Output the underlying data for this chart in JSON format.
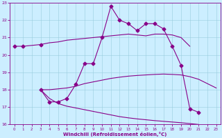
{
  "xlabel": "Windchill (Refroidissement éolien,°C)",
  "bg_color": "#cceeff",
  "line_color": "#880088",
  "grid_color": "#99ccdd",
  "xlim": [
    -0.5,
    23.5
  ],
  "ylim": [
    16,
    23
  ],
  "yticks": [
    16,
    17,
    18,
    19,
    20,
    21,
    22,
    23
  ],
  "xticks": [
    0,
    1,
    2,
    3,
    4,
    5,
    6,
    7,
    8,
    9,
    10,
    11,
    12,
    13,
    14,
    15,
    16,
    17,
    18,
    19,
    20,
    21,
    22,
    23
  ],
  "s0_x": [
    0,
    1,
    2,
    3,
    4,
    5,
    6,
    7,
    8,
    9,
    10,
    11,
    12,
    13,
    14,
    15,
    16,
    17,
    18,
    19,
    20
  ],
  "s0_y": [
    20.5,
    20.5,
    20.55,
    20.6,
    20.7,
    20.75,
    20.85,
    20.9,
    20.95,
    21.0,
    21.05,
    21.1,
    21.15,
    21.2,
    21.15,
    21.1,
    21.2,
    21.2,
    21.15,
    21.0,
    20.5
  ],
  "s0_mx": [
    0,
    1,
    3
  ],
  "s0_my": [
    20.5,
    20.5,
    20.6
  ],
  "s1_x": [
    3,
    4,
    5,
    6,
    7,
    8,
    9,
    10,
    11,
    12,
    13,
    14,
    15,
    16,
    17,
    18,
    19,
    20,
    21
  ],
  "s1_y": [
    18.0,
    17.3,
    17.3,
    17.5,
    18.3,
    19.5,
    19.5,
    21.0,
    22.8,
    22.0,
    21.8,
    21.4,
    21.8,
    21.8,
    21.5,
    20.5,
    19.4,
    16.9,
    16.7
  ],
  "s2_x": [
    3,
    4,
    5,
    6,
    7,
    8,
    9,
    10,
    11,
    12,
    13,
    14,
    15,
    16,
    17,
    18,
    19,
    20,
    21,
    22,
    23
  ],
  "s2_y": [
    18.0,
    18.0,
    18.05,
    18.1,
    18.2,
    18.35,
    18.45,
    18.55,
    18.65,
    18.72,
    18.78,
    18.82,
    18.85,
    18.88,
    18.9,
    18.88,
    18.85,
    18.75,
    18.6,
    18.35,
    18.1
  ],
  "s3_x": [
    3,
    4,
    5,
    6,
    7,
    8,
    9,
    10,
    11,
    12,
    13,
    14,
    15,
    16,
    17,
    18,
    19,
    20,
    21,
    22,
    23
  ],
  "s3_y": [
    18.0,
    17.5,
    17.2,
    17.05,
    16.95,
    16.85,
    16.75,
    16.65,
    16.55,
    16.45,
    16.38,
    16.32,
    16.27,
    16.22,
    16.18,
    16.14,
    16.1,
    16.05,
    16.0,
    15.87,
    15.8
  ]
}
